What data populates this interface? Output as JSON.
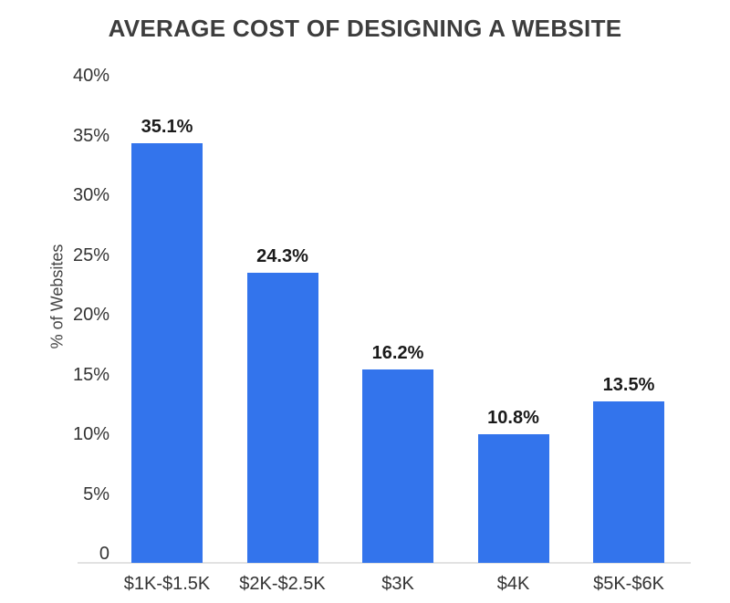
{
  "chart_data": {
    "type": "bar",
    "title": "AVERAGE COST OF DESIGNING A WEBSITE",
    "xlabel": "",
    "ylabel": "% of Websites",
    "categories": [
      "$1K-$1.5K",
      "$2K-$2.5K",
      "$3K",
      "$4K",
      "$5K-$6K"
    ],
    "values": [
      35.1,
      24.3,
      16.2,
      10.8,
      13.5
    ],
    "value_labels": [
      "35.1%",
      "24.3%",
      "16.2%",
      "10.8%",
      "13.5%"
    ],
    "ylim": [
      0,
      40
    ],
    "ytick_values": [
      0,
      5,
      10,
      15,
      20,
      25,
      30,
      35,
      40
    ],
    "ytick_labels": [
      "0",
      "5%",
      "10%",
      "15%",
      "20%",
      "25%",
      "30%",
      "35%",
      "40%"
    ],
    "grid": false,
    "legend": "none",
    "colors": {
      "bar": "#3374ec",
      "axis_line": "#e2e2e2",
      "title": "#3d3d3d",
      "value_label": "#1a1a1a",
      "tick_label": "#333333",
      "y_axis_title": "#444444",
      "background": "#ffffff"
    }
  }
}
